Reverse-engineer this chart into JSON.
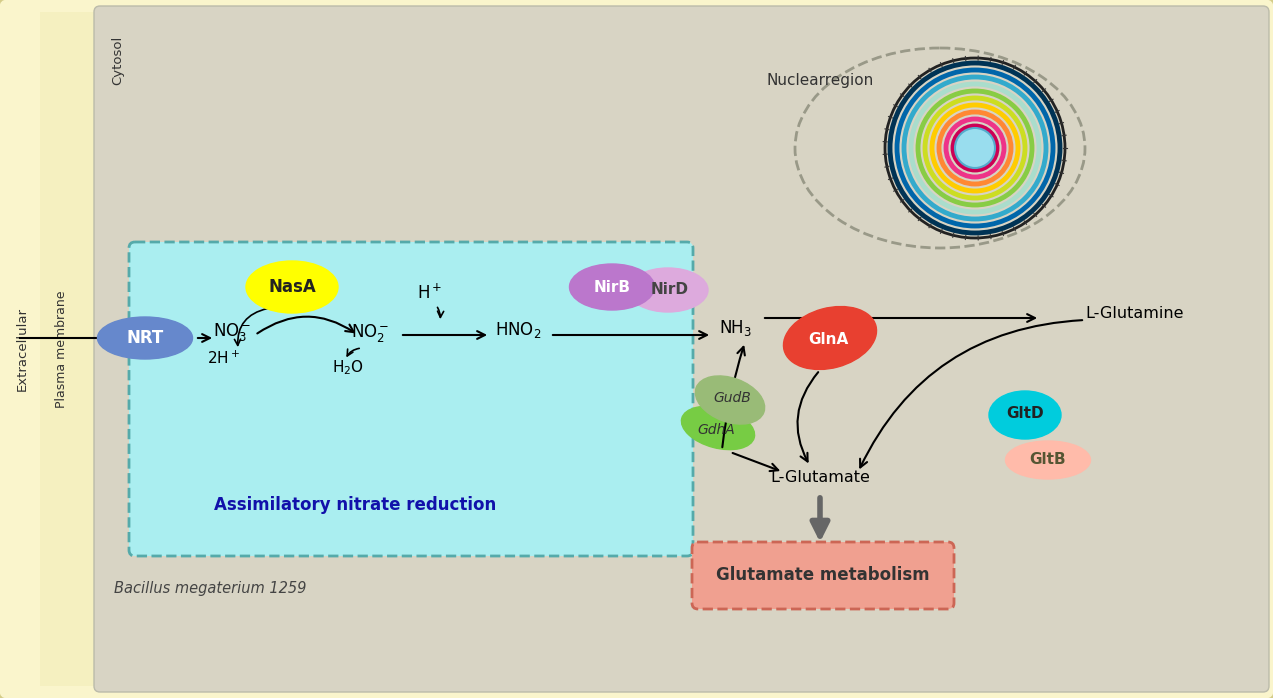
{
  "bg_outer": "#faf5cc",
  "bg_cytosol": "#d8d4c4",
  "bg_plasma": "#f5f0c0",
  "bg_cyan_box": "#aaeef0",
  "label_extracellular": "Extracellular",
  "label_plasma_membrane": "Plasma membrane",
  "label_cytosol": "Cytosol",
  "label_nuclear": "Nuclearregion",
  "label_assimilatory": "Assimilatory nitrate reduction",
  "label_bacillus": "Bacillus megaterium 1259",
  "label_glutamate_metabolism": "Glutamate metabolism",
  "nrt_color": "#6688cc",
  "nasa_color": "#ffff00",
  "nirb_color": "#bb77cc",
  "nird_color": "#ddaadd",
  "glna_color": "#e84030",
  "gudb_color": "#99bb77",
  "gdha_color": "#77cc44",
  "gltd_color": "#00ccdd",
  "gltb_color": "#ffbbaa",
  "glut_meta_color": "#f0a090",
  "glut_meta_border": "#cc6655",
  "ring_colors": [
    "#003355",
    "#0066aa",
    "#33aacc",
    "#aaddcc",
    "#88cc44",
    "#ccdd22",
    "#ffcc00",
    "#ff8833",
    "#ee3388",
    "#cc0055"
  ]
}
